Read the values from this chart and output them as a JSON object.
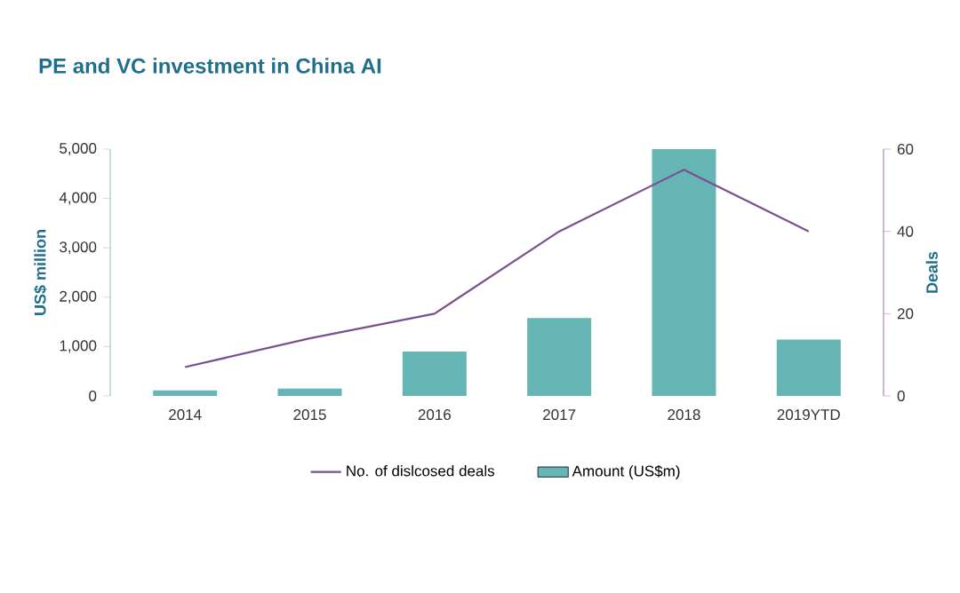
{
  "chart_data": {
    "type": "bar",
    "title": "PE and VC investment in China AI",
    "ylabel": "US$ million",
    "y2label": "Deals",
    "categories": [
      "2014",
      "2015",
      "2016",
      "2017",
      "2018",
      "2019YTD"
    ],
    "series": [
      {
        "name": "No. of dislcosed deals",
        "type": "line",
        "axis": "y2",
        "color": "#7b4f8f",
        "values": [
          7,
          14,
          20,
          40,
          55,
          40
        ]
      },
      {
        "name": "Amount (US$m)",
        "color": "#66b5b5",
        "values": [
          110,
          150,
          900,
          1580,
          5000,
          1140
        ]
      }
    ],
    "ylim": [
      0,
      5000
    ],
    "yticks": [
      0,
      {
        "value": 1000,
        "label": "1,000"
      },
      {
        "value": 2000,
        "label": "2,000"
      },
      {
        "value": 3000,
        "label": "3,000"
      },
      {
        "value": 4000,
        "label": "4,000"
      },
      {
        "value": 5000,
        "label": "5,000"
      }
    ],
    "y2lim": [
      0,
      60
    ],
    "y2ticks": [
      0,
      20,
      40,
      60
    ],
    "legend": "bottom",
    "grid": false
  }
}
